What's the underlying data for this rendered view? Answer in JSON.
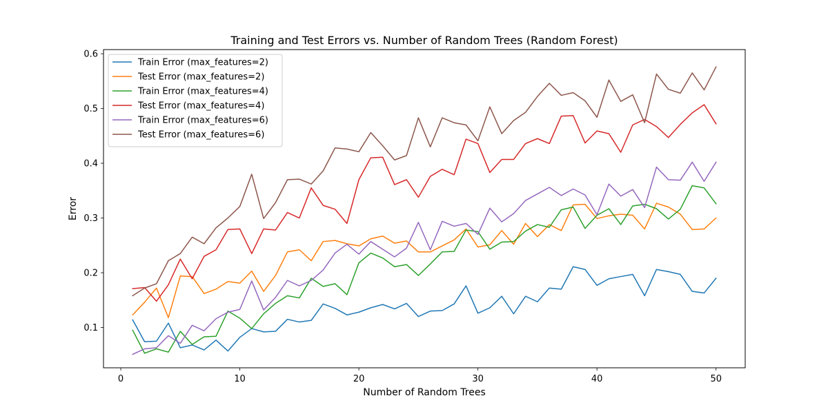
{
  "chart_data": {
    "type": "line",
    "title": "Training and Test Errors vs. Number of Random Trees (Random Forest)",
    "xlabel": "Number of Random Trees",
    "ylabel": "Error",
    "xlim": [
      -1.45,
      52.45
    ],
    "ylim": [
      0.0264,
      0.6076
    ],
    "xticks": [
      0,
      10,
      20,
      30,
      40,
      50
    ],
    "xtick_labels": [
      "0",
      "10",
      "20",
      "30",
      "40",
      "50"
    ],
    "yticks": [
      0.1,
      0.2,
      0.3,
      0.4,
      0.5,
      0.6
    ],
    "ytick_labels": [
      "0.1",
      "0.2",
      "0.3",
      "0.4",
      "0.5",
      "0.6"
    ],
    "grid": false,
    "legend_position": "top-left",
    "x": [
      1,
      2,
      3,
      4,
      5,
      6,
      7,
      8,
      9,
      10,
      11,
      12,
      13,
      14,
      15,
      16,
      17,
      18,
      19,
      20,
      21,
      22,
      23,
      24,
      25,
      26,
      27,
      28,
      29,
      30,
      31,
      32,
      33,
      34,
      35,
      36,
      37,
      38,
      39,
      40,
      41,
      42,
      43,
      44,
      45,
      46,
      47,
      48,
      49,
      50
    ],
    "series": [
      {
        "name": "Train Error (max_features=2)",
        "color": "#1f77b4",
        "values": [
          0.114,
          0.074,
          0.075,
          0.108,
          0.063,
          0.068,
          0.059,
          0.077,
          0.057,
          0.082,
          0.098,
          0.092,
          0.093,
          0.115,
          0.11,
          0.113,
          0.143,
          0.135,
          0.123,
          0.128,
          0.136,
          0.142,
          0.134,
          0.144,
          0.12,
          0.13,
          0.131,
          0.143,
          0.176,
          0.126,
          0.136,
          0.157,
          0.125,
          0.157,
          0.147,
          0.172,
          0.17,
          0.211,
          0.206,
          0.177,
          0.189,
          0.193,
          0.197,
          0.158,
          0.206,
          0.202,
          0.197,
          0.166,
          0.163,
          0.19
        ]
      },
      {
        "name": "Test Error (max_features=2)",
        "color": "#ff7f0e",
        "values": [
          0.123,
          0.146,
          0.172,
          0.118,
          0.194,
          0.193,
          0.162,
          0.17,
          0.184,
          0.181,
          0.203,
          0.166,
          0.195,
          0.238,
          0.242,
          0.222,
          0.257,
          0.259,
          0.253,
          0.249,
          0.262,
          0.267,
          0.254,
          0.258,
          0.238,
          0.238,
          0.249,
          0.26,
          0.28,
          0.247,
          0.251,
          0.277,
          0.252,
          0.29,
          0.266,
          0.288,
          0.277,
          0.324,
          0.325,
          0.299,
          0.304,
          0.307,
          0.305,
          0.28,
          0.327,
          0.32,
          0.307,
          0.279,
          0.28,
          0.3
        ]
      },
      {
        "name": "Train Error (max_features=4)",
        "color": "#2ca02c",
        "values": [
          0.095,
          0.053,
          0.061,
          0.055,
          0.093,
          0.069,
          0.083,
          0.084,
          0.13,
          0.117,
          0.098,
          0.125,
          0.144,
          0.158,
          0.154,
          0.19,
          0.175,
          0.18,
          0.16,
          0.218,
          0.236,
          0.227,
          0.211,
          0.215,
          0.195,
          0.216,
          0.238,
          0.239,
          0.278,
          0.275,
          0.243,
          0.256,
          0.257,
          0.276,
          0.288,
          0.283,
          0.315,
          0.32,
          0.281,
          0.305,
          0.317,
          0.288,
          0.322,
          0.325,
          0.317,
          0.298,
          0.316,
          0.359,
          0.355,
          0.326
        ]
      },
      {
        "name": "Test Error (max_features=4)",
        "color": "#d62728",
        "values": [
          0.171,
          0.173,
          0.148,
          0.178,
          0.225,
          0.189,
          0.23,
          0.242,
          0.279,
          0.28,
          0.235,
          0.28,
          0.278,
          0.31,
          0.3,
          0.355,
          0.323,
          0.316,
          0.29,
          0.37,
          0.41,
          0.411,
          0.361,
          0.37,
          0.338,
          0.376,
          0.389,
          0.379,
          0.444,
          0.436,
          0.383,
          0.407,
          0.407,
          0.436,
          0.445,
          0.436,
          0.486,
          0.487,
          0.437,
          0.459,
          0.454,
          0.42,
          0.47,
          0.48,
          0.467,
          0.447,
          0.471,
          0.492,
          0.507,
          0.472
        ]
      },
      {
        "name": "Train Error (max_features=6)",
        "color": "#9467bd",
        "values": [
          0.051,
          0.061,
          0.063,
          0.085,
          0.071,
          0.104,
          0.094,
          0.116,
          0.128,
          0.133,
          0.185,
          0.132,
          0.155,
          0.186,
          0.176,
          0.186,
          0.205,
          0.236,
          0.252,
          0.234,
          0.257,
          0.243,
          0.229,
          0.245,
          0.292,
          0.242,
          0.294,
          0.285,
          0.29,
          0.27,
          0.318,
          0.293,
          0.308,
          0.332,
          0.344,
          0.356,
          0.341,
          0.353,
          0.342,
          0.306,
          0.362,
          0.34,
          0.352,
          0.319,
          0.393,
          0.37,
          0.369,
          0.402,
          0.367,
          0.402
        ]
      },
      {
        "name": "Test Error (max_features=6)",
        "color": "#8c564b",
        "values": [
          0.158,
          0.172,
          0.18,
          0.222,
          0.235,
          0.265,
          0.253,
          0.282,
          0.3,
          0.321,
          0.38,
          0.299,
          0.328,
          0.37,
          0.371,
          0.362,
          0.386,
          0.428,
          0.426,
          0.421,
          0.456,
          0.432,
          0.406,
          0.414,
          0.483,
          0.43,
          0.483,
          0.474,
          0.47,
          0.441,
          0.503,
          0.454,
          0.478,
          0.493,
          0.522,
          0.546,
          0.524,
          0.529,
          0.514,
          0.484,
          0.552,
          0.513,
          0.525,
          0.474,
          0.563,
          0.535,
          0.528,
          0.565,
          0.534,
          0.576
        ]
      }
    ]
  }
}
